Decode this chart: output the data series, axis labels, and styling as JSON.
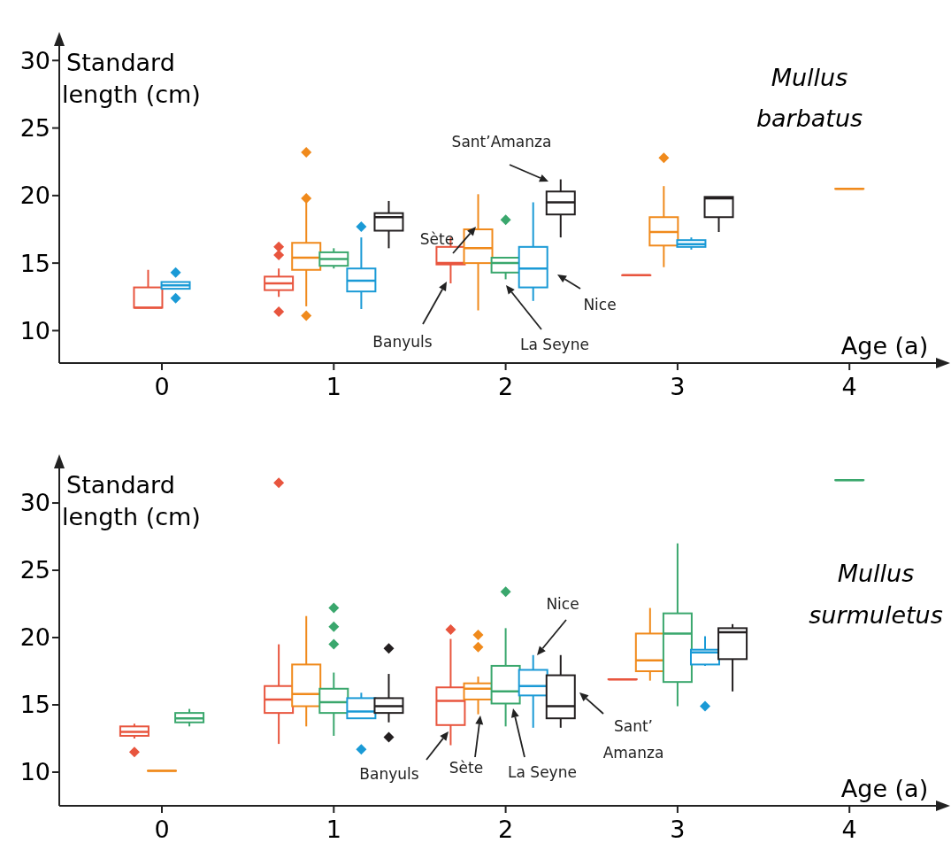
{
  "chart_data": [
    {
      "type": "box",
      "title": "Mullus barbatus",
      "xlabel": "Age (a)",
      "ylabel": "Standard length (cm)",
      "annotations": [
        "Banyuls",
        "Sète",
        "La Seyne",
        "Nice",
        "Sant’Amanza"
      ],
      "categories": [
        "0",
        "1",
        "2",
        "3",
        "4"
      ],
      "ylim": [
        7.6,
        31.2
      ],
      "yticks": [
        10,
        15,
        20,
        25,
        30
      ],
      "series": [
        {
          "color": "#e8553e",
          "boxes": [
            {
              "low": 11.7,
              "q1": 11.7,
              "median": 11.7,
              "q3": 13.2,
              "high": 14.5
            },
            {
              "low": 12.5,
              "q1": 13.0,
              "median": 13.5,
              "q3": 14.0,
              "high": 14.6,
              "outliers": [
                16.2,
                15.6,
                11.4
              ]
            },
            {
              "low": 13.5,
              "q1": 14.9,
              "median": 15.0,
              "q3": 16.2,
              "high": 16.9
            },
            {
              "low": 14.1,
              "q1": 14.1,
              "median": 14.1,
              "q3": 14.1,
              "high": 14.1
            },
            null
          ]
        },
        {
          "color": "#f08a1c",
          "boxes": [
            null,
            {
              "low": 11.8,
              "q1": 14.5,
              "median": 15.4,
              "q3": 16.5,
              "high": 19.5,
              "outliers": [
                23.2,
                19.8,
                11.1
              ]
            },
            {
              "low": 11.5,
              "q1": 15.0,
              "median": 16.1,
              "q3": 17.5,
              "high": 20.1
            },
            {
              "low": 14.7,
              "q1": 16.3,
              "median": 17.3,
              "q3": 18.4,
              "high": 20.7,
              "outliers": [
                22.8
              ]
            },
            {
              "low": 20.5,
              "q1": 20.5,
              "median": 20.5,
              "q3": 20.5,
              "high": 20.5
            }
          ]
        },
        {
          "color": "#3aa76d",
          "boxes": [
            null,
            {
              "low": 14.6,
              "q1": 14.8,
              "median": 15.3,
              "q3": 15.8,
              "high": 16.1
            },
            {
              "low": 13.8,
              "q1": 14.3,
              "median": 15.0,
              "q3": 15.4,
              "high": 15.4,
              "outliers": [
                18.2
              ]
            },
            null,
            null
          ]
        },
        {
          "color": "#1a9ad6",
          "boxes": [
            {
              "low": 13.1,
              "q1": 13.1,
              "median": 13.35,
              "q3": 13.6,
              "high": 13.6,
              "outliers": [
                14.3,
                12.4
              ]
            },
            {
              "low": 11.6,
              "q1": 12.9,
              "median": 13.7,
              "q3": 14.6,
              "high": 16.9,
              "outliers": [
                17.7
              ]
            },
            {
              "low": 12.2,
              "q1": 13.2,
              "median": 14.6,
              "q3": 16.2,
              "high": 19.5
            },
            {
              "low": 16.0,
              "q1": 16.2,
              "median": 16.4,
              "q3": 16.7,
              "high": 16.9
            },
            null
          ]
        },
        {
          "color": "#231f20",
          "boxes": [
            null,
            {
              "low": 16.1,
              "q1": 17.4,
              "median": 18.4,
              "q3": 18.7,
              "high": 19.6
            },
            {
              "low": 16.9,
              "q1": 18.6,
              "median": 19.5,
              "q3": 20.3,
              "high": 21.2
            },
            {
              "low": 17.3,
              "q1": 18.4,
              "median": 19.8,
              "q3": 19.9,
              "high": 19.9
            },
            null
          ]
        }
      ]
    },
    {
      "type": "box",
      "title": "Mullus surmuletus",
      "xlabel": "Age (a)",
      "ylabel": "Standard length (cm)",
      "annotations": [
        "Banyuls",
        "Sète",
        "La Seyne",
        "Nice",
        "Sant’ Amanza"
      ],
      "categories": [
        "0",
        "1",
        "2",
        "3",
        "4"
      ],
      "ylim": [
        7.5,
        32.7
      ],
      "yticks": [
        10,
        15,
        20,
        25,
        30
      ],
      "series": [
        {
          "color": "#e8553e",
          "boxes": [
            {
              "low": 12.5,
              "q1": 12.7,
              "median": 13.0,
              "q3": 13.4,
              "high": 13.6,
              "outliers": [
                11.5
              ]
            },
            {
              "low": 12.1,
              "q1": 14.4,
              "median": 15.4,
              "q3": 16.4,
              "high": 19.5,
              "outliers": [
                31.5
              ]
            },
            {
              "low": 12.0,
              "q1": 13.5,
              "median": 15.3,
              "q3": 16.3,
              "high": 19.9,
              "outliers": [
                20.6
              ]
            },
            {
              "low": 16.9,
              "q1": 16.9,
              "median": 16.9,
              "q3": 16.9,
              "high": 16.9
            },
            null
          ]
        },
        {
          "color": "#f08a1c",
          "boxes": [
            {
              "low": 10.1,
              "q1": 10.1,
              "median": 10.1,
              "q3": 10.1,
              "high": 10.1
            },
            {
              "low": 13.4,
              "q1": 14.9,
              "median": 15.8,
              "q3": 18.0,
              "high": 21.6
            },
            {
              "low": 14.3,
              "q1": 15.4,
              "median": 16.2,
              "q3": 16.6,
              "high": 17.1,
              "outliers": [
                20.2,
                19.3
              ]
            },
            {
              "low": 16.8,
              "q1": 17.5,
              "median": 18.3,
              "q3": 20.3,
              "high": 22.2
            },
            null
          ]
        },
        {
          "color": "#3aa76d",
          "boxes": [
            {
              "low": 13.4,
              "q1": 13.7,
              "median": 14.0,
              "q3": 14.4,
              "high": 14.7
            },
            {
              "low": 12.7,
              "q1": 14.4,
              "median": 15.2,
              "q3": 16.2,
              "high": 17.4,
              "outliers": [
                22.2,
                20.8,
                19.5
              ]
            },
            {
              "low": 13.4,
              "q1": 15.1,
              "median": 16.0,
              "q3": 17.9,
              "high": 20.7,
              "outliers": [
                23.4
              ]
            },
            {
              "low": 14.9,
              "q1": 16.7,
              "median": 20.3,
              "q3": 21.8,
              "high": 27.0
            },
            {
              "low": 31.7,
              "q1": 31.7,
              "median": 31.7,
              "q3": 31.7,
              "high": 31.7
            }
          ]
        },
        {
          "color": "#1a9ad6",
          "boxes": [
            null,
            {
              "low": 14.0,
              "q1": 14.0,
              "median": 14.5,
              "q3": 15.5,
              "high": 15.9,
              "outliers": [
                11.7
              ]
            },
            {
              "low": 13.3,
              "q1": 15.7,
              "median": 16.4,
              "q3": 17.6,
              "high": 18.7
            },
            {
              "low": 17.9,
              "q1": 18.0,
              "median": 18.9,
              "q3": 19.1,
              "high": 20.1,
              "outliers": [
                14.9
              ]
            },
            null
          ]
        },
        {
          "color": "#231f20",
          "boxes": [
            null,
            {
              "low": 13.7,
              "q1": 14.4,
              "median": 14.9,
              "q3": 15.5,
              "high": 17.3,
              "outliers": [
                19.2,
                12.6
              ]
            },
            {
              "low": 13.3,
              "q1": 14.0,
              "median": 14.9,
              "q3": 17.2,
              "high": 18.7
            },
            {
              "low": 16.0,
              "q1": 18.4,
              "median": 20.4,
              "q3": 20.7,
              "high": 21.0
            },
            null
          ]
        }
      ]
    }
  ]
}
